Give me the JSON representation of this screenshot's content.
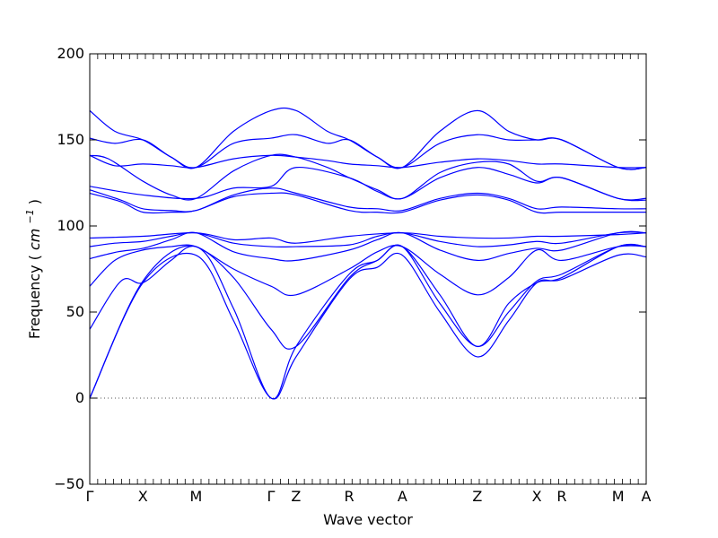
{
  "chart_data": {
    "type": "line",
    "title": "",
    "xlabel": "Wave vector",
    "ylabel": "Frequency",
    "ylabel_unit": "cm",
    "ylabel_unit_exponent": "−1",
    "ylim": [
      -50,
      200
    ],
    "yticks": [
      -50,
      0,
      50,
      100,
      150,
      200
    ],
    "grid": false,
    "legend": "none",
    "line_color": "#0000ff",
    "zero_line_color": "#555555",
    "xlim": [
      0,
      17.8
    ],
    "xticks": [
      {
        "label": "Γ",
        "x": 0
      },
      {
        "label": "X",
        "x": 1.7
      },
      {
        "label": "M",
        "x": 3.4
      },
      {
        "label": "Γ",
        "x": 5.8
      },
      {
        "label": "Z",
        "x": 6.6
      },
      {
        "label": "R",
        "x": 8.3
      },
      {
        "label": "A",
        "x": 10.0
      },
      {
        "label": "Z",
        "x": 12.4
      },
      {
        "label": "X",
        "x": 14.3
      },
      {
        "label": "R",
        "x": 15.1
      },
      {
        "label": "M",
        "x": 16.9
      },
      {
        "label": "A",
        "x": 17.8
      }
    ],
    "series": [
      {
        "x": [
          0,
          1.7,
          3.4,
          4.6,
          5.8,
          6.6,
          8.3,
          9.2,
          10.0,
          11.2,
          12.4,
          13.4,
          14.3,
          15.1,
          16.9,
          17.8
        ],
        "y": [
          0,
          67,
          83,
          45,
          0,
          24,
          69,
          76,
          83,
          50,
          24,
          45,
          67,
          69,
          83,
          82
        ]
      },
      {
        "x": [
          0,
          1.7,
          3.4,
          4.6,
          5.8,
          6.6,
          8.3,
          9.2,
          10.0,
          11.2,
          12.4,
          13.4,
          14.3,
          15.1,
          16.9,
          17.8
        ],
        "y": [
          0,
          68,
          88,
          52,
          0,
          30,
          72,
          80,
          88,
          55,
          30,
          50,
          68,
          72,
          88,
          88
        ]
      },
      {
        "x": [
          0,
          1.0,
          1.7,
          2.6,
          3.4,
          4.6,
          5.8,
          6.6,
          8.3,
          9.2,
          10.0,
          11.2,
          12.4,
          13.4,
          14.3,
          15.1,
          16.9,
          17.8
        ],
        "y": [
          40,
          68,
          67,
          80,
          88,
          70,
          40,
          30,
          70,
          80,
          88,
          60,
          30,
          55,
          67,
          70,
          88,
          88
        ]
      },
      {
        "x": [
          0,
          0.8,
          1.7,
          2.6,
          3.4,
          4.6,
          5.8,
          6.6,
          8.3,
          9.2,
          10.0,
          11.2,
          12.4,
          13.4,
          14.3,
          15.1,
          16.9,
          17.8
        ],
        "y": [
          65,
          80,
          86,
          88,
          88,
          75,
          65,
          60,
          75,
          85,
          88,
          72,
          60,
          70,
          86,
          80,
          88,
          88
        ]
      },
      {
        "x": [
          0,
          0.9,
          1.7,
          2.6,
          3.4,
          4.6,
          5.8,
          6.6,
          8.3,
          9.2,
          10.0,
          11.2,
          12.4,
          13.4,
          14.3,
          15.1,
          16.9,
          17.8
        ],
        "y": [
          81,
          85,
          87,
          92,
          96,
          85,
          81,
          80,
          86,
          92,
          96,
          86,
          80,
          84,
          87,
          86,
          96,
          96
        ]
      },
      {
        "x": [
          0,
          0.8,
          1.7,
          2.6,
          3.4,
          4.6,
          5.8,
          6.6,
          8.3,
          9.2,
          10.0,
          11.2,
          12.4,
          13.4,
          14.3,
          15.1,
          16.9,
          17.8
        ],
        "y": [
          88,
          90,
          91,
          94,
          96,
          90,
          88,
          88,
          89,
          94,
          96,
          91,
          88,
          89,
          91,
          90,
          96,
          96
        ]
      },
      {
        "x": [
          0,
          1.7,
          3.4,
          4.6,
          5.8,
          6.6,
          8.3,
          10.0,
          11.2,
          12.4,
          13.4,
          14.3,
          15.1,
          16.9,
          17.8
        ],
        "y": [
          93,
          94,
          96,
          92,
          93,
          90,
          94,
          96,
          94,
          93,
          93,
          94,
          94,
          95,
          96
        ]
      },
      {
        "x": [
          0,
          1.0,
          1.7,
          2.6,
          3.4,
          4.6,
          5.8,
          6.6,
          8.3,
          9.2,
          10.0,
          11.2,
          12.4,
          13.4,
          14.3,
          15.1,
          16.9,
          17.8
        ],
        "y": [
          119,
          114,
          108,
          108,
          109,
          117,
          119,
          118,
          109,
          108,
          108,
          115,
          118,
          115,
          108,
          108,
          108,
          108
        ]
      },
      {
        "x": [
          0,
          1.0,
          1.7,
          2.6,
          3.4,
          4.6,
          5.8,
          6.6,
          8.3,
          9.2,
          10.0,
          11.2,
          12.4,
          13.4,
          14.3,
          15.1,
          16.9,
          17.8
        ],
        "y": [
          121,
          115,
          110,
          109,
          109,
          118,
          122,
          119,
          111,
          110,
          109,
          116,
          119,
          116,
          110,
          111,
          110,
          110
        ]
      },
      {
        "x": [
          0,
          1.7,
          3.4,
          4.6,
          5.8,
          6.6,
          8.3,
          9.2,
          10.0,
          11.2,
          12.4,
          13.4,
          14.3,
          15.1,
          16.9,
          17.8
        ],
        "y": [
          123,
          118,
          116,
          122,
          123,
          134,
          128,
          120,
          116,
          128,
          134,
          130,
          125,
          128,
          116,
          115
        ]
      },
      {
        "x": [
          0,
          0.6,
          1.7,
          2.6,
          3.4,
          4.6,
          5.8,
          6.6,
          7.6,
          8.3,
          9.2,
          10.0,
          11.2,
          12.4,
          13.4,
          14.3,
          15.1,
          16.9,
          17.8
        ],
        "y": [
          141,
          139,
          126,
          118,
          116,
          132,
          141,
          140,
          134,
          128,
          121,
          116,
          131,
          137,
          136,
          126,
          128,
          116,
          116
        ]
      },
      {
        "x": [
          0,
          0.8,
          1.7,
          2.6,
          3.4,
          4.6,
          5.8,
          6.6,
          7.6,
          8.3,
          9.2,
          10.0,
          11.2,
          12.4,
          13.4,
          14.3,
          15.1,
          16.9,
          17.8
        ],
        "y": [
          141,
          135,
          136,
          135,
          134,
          139,
          141,
          140,
          138,
          136,
          135,
          134,
          137,
          139,
          138,
          136,
          136,
          134,
          134
        ]
      },
      {
        "x": [
          0,
          0.8,
          1.7,
          2.6,
          3.4,
          4.6,
          5.8,
          6.6,
          7.6,
          8.3,
          9.2,
          10.0,
          11.2,
          12.4,
          13.4,
          14.3,
          15.1,
          16.9,
          17.8
        ],
        "y": [
          151,
          148,
          150,
          140,
          134,
          148,
          151,
          153,
          148,
          150,
          140,
          134,
          148,
          153,
          150,
          150,
          150,
          134,
          134
        ]
      },
      {
        "x": [
          0,
          0.8,
          1.7,
          2.6,
          3.4,
          4.6,
          5.8,
          6.6,
          7.6,
          8.3,
          9.2,
          10.0,
          11.2,
          12.4,
          13.4,
          14.3,
          15.1,
          16.9,
          17.8
        ],
        "y": [
          167,
          155,
          150,
          140,
          134,
          155,
          167,
          167,
          155,
          150,
          140,
          134,
          155,
          167,
          155,
          150,
          150,
          134,
          134
        ]
      }
    ]
  }
}
